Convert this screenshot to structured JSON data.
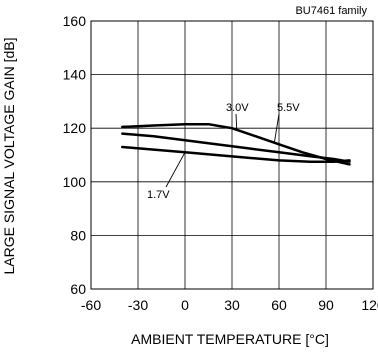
{
  "chart_data": {
    "type": "line",
    "annotation_top": "BU7461 family",
    "xlabel": "AMBIENT TEMPERATURE [°C]",
    "ylabel": "LARGE SIGNAL VOLTAGE GAIN [dB]",
    "xlim": [
      -60,
      120
    ],
    "ylim": [
      60,
      160
    ],
    "x_ticks": [
      "-60",
      "-30",
      "0",
      "30",
      "60",
      "90",
      "120"
    ],
    "y_ticks": [
      "60",
      "80",
      "100",
      "120",
      "140",
      "160"
    ],
    "grid": true,
    "series": [
      {
        "name": "5.5V",
        "x": [
          -40,
          -20,
          0,
          15,
          30,
          45,
          60,
          75,
          90,
          105
        ],
        "y": [
          120.5,
          121,
          121.5,
          121.5,
          120,
          117,
          114,
          111,
          108.5,
          106.5
        ]
      },
      {
        "name": "3.0V",
        "x": [
          -40,
          -20,
          0,
          20,
          40,
          60,
          80,
          95,
          105
        ],
        "y": [
          118,
          117,
          115.5,
          114,
          112.5,
          111,
          109.5,
          108.5,
          107.5
        ]
      },
      {
        "name": "1.7V",
        "x": [
          -40,
          -20,
          0,
          20,
          40,
          60,
          80,
          95,
          105
        ],
        "y": [
          113,
          112,
          111,
          110,
          109,
          108,
          107.5,
          107.5,
          108
        ]
      }
    ],
    "annotations": [
      {
        "text": "5.5V",
        "series": "5.5V"
      },
      {
        "text": "3.0V",
        "series": "3.0V"
      },
      {
        "text": "1.7V",
        "series": "1.7V"
      }
    ]
  }
}
